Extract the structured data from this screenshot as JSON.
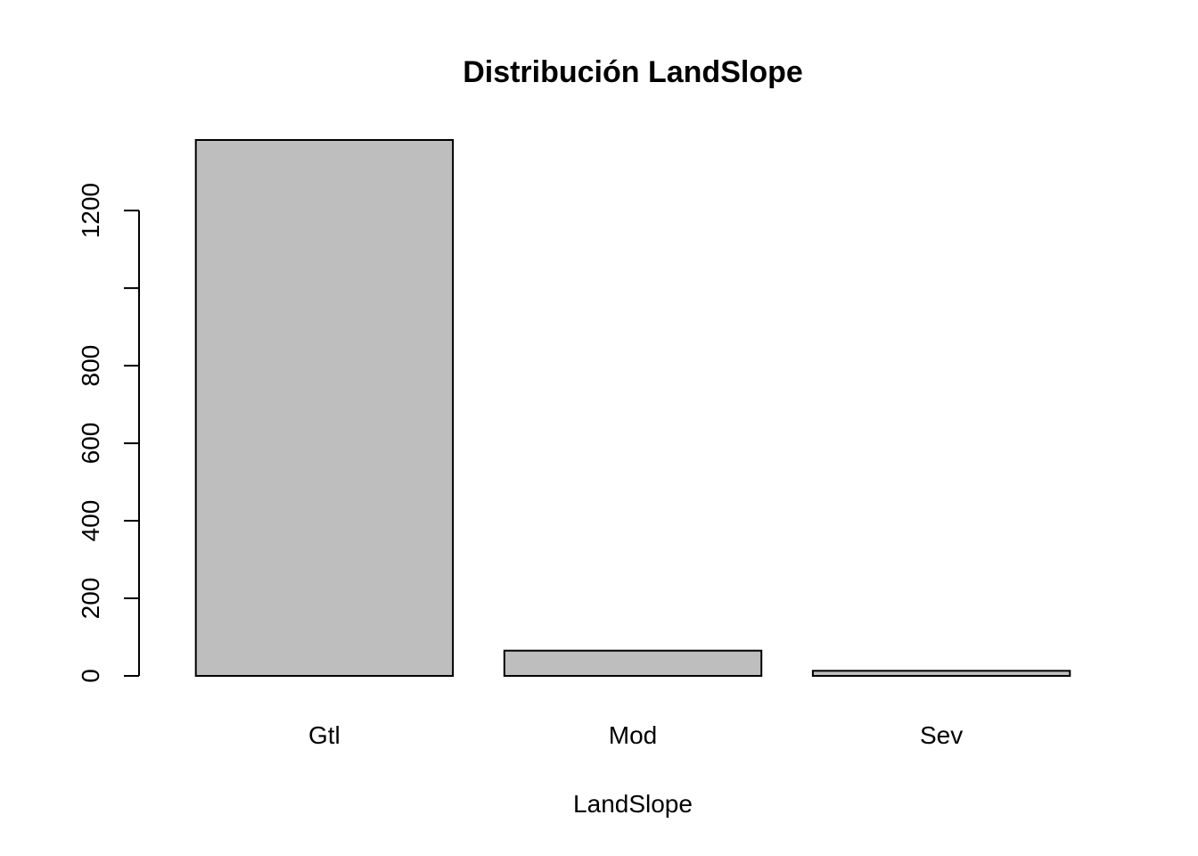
{
  "chart_data": {
    "type": "bar",
    "title": "Distribución LandSlope",
    "xlabel": "LandSlope",
    "ylabel": "",
    "categories": [
      "Gtl",
      "Mod",
      "Sev"
    ],
    "values": [
      1382,
      65,
      13
    ],
    "ylim": [
      0,
      1382
    ],
    "yticks": [
      0,
      200,
      400,
      600,
      800,
      1000,
      1200
    ],
    "ytick_labels": [
      "0",
      "200",
      "400",
      "600",
      "800",
      "",
      "1200"
    ],
    "bar_color": "#bebebe",
    "grid": false,
    "legend": "none"
  }
}
